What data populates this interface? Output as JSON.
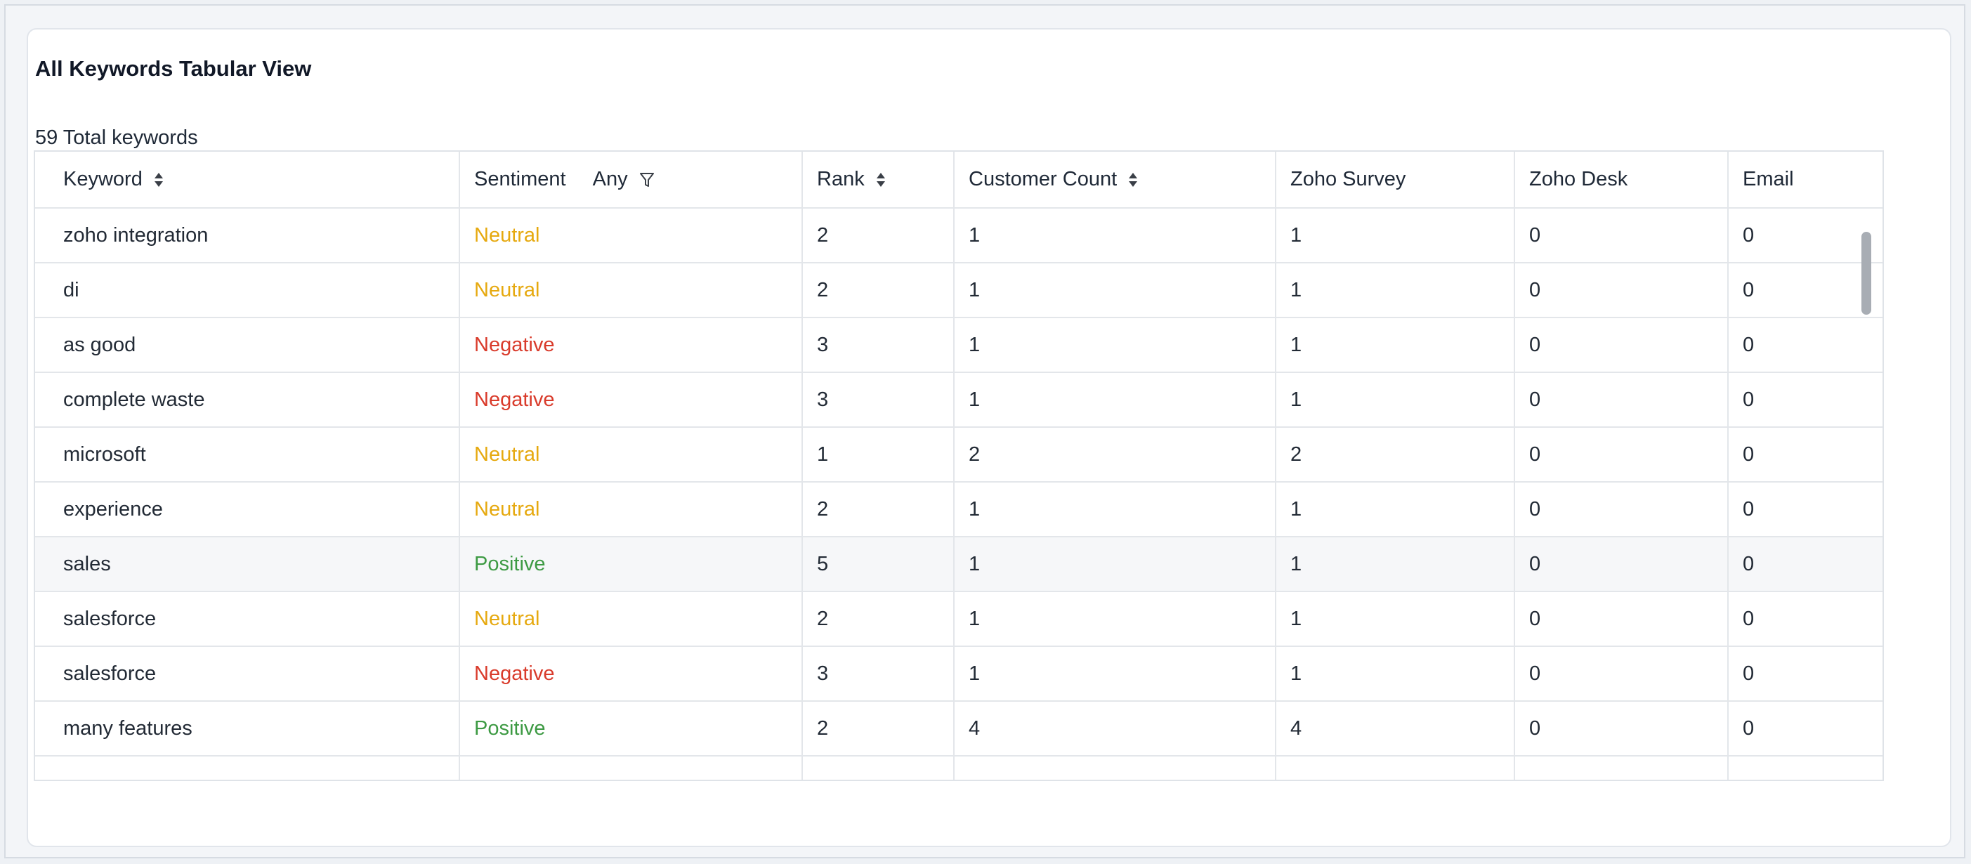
{
  "card": {
    "title": "All Keywords Tabular View",
    "total_label": "59 Total keywords"
  },
  "table": {
    "headers": {
      "keyword": "Keyword",
      "sentiment": "Sentiment",
      "sentiment_filter": "Any",
      "rank": "Rank",
      "customer_count": "Customer Count",
      "zoho_survey": "Zoho Survey",
      "zoho_desk": "Zoho Desk",
      "email": "Email"
    },
    "rows": [
      {
        "keyword": "zoho integration",
        "sentiment": "Neutral",
        "rank": "2",
        "customer_count": "1",
        "zoho_survey": "1",
        "zoho_desk": "0",
        "email": "0"
      },
      {
        "keyword": "di",
        "sentiment": "Neutral",
        "rank": "2",
        "customer_count": "1",
        "zoho_survey": "1",
        "zoho_desk": "0",
        "email": "0"
      },
      {
        "keyword": "as good",
        "sentiment": "Negative",
        "rank": "3",
        "customer_count": "1",
        "zoho_survey": "1",
        "zoho_desk": "0",
        "email": "0"
      },
      {
        "keyword": "complete waste",
        "sentiment": "Negative",
        "rank": "3",
        "customer_count": "1",
        "zoho_survey": "1",
        "zoho_desk": "0",
        "email": "0"
      },
      {
        "keyword": "microsoft",
        "sentiment": "Neutral",
        "rank": "1",
        "customer_count": "2",
        "zoho_survey": "2",
        "zoho_desk": "0",
        "email": "0"
      },
      {
        "keyword": "experience",
        "sentiment": "Neutral",
        "rank": "2",
        "customer_count": "1",
        "zoho_survey": "1",
        "zoho_desk": "0",
        "email": "0"
      },
      {
        "keyword": "sales",
        "sentiment": "Positive",
        "rank": "5",
        "customer_count": "1",
        "zoho_survey": "1",
        "zoho_desk": "0",
        "email": "0"
      },
      {
        "keyword": "salesforce",
        "sentiment": "Neutral",
        "rank": "2",
        "customer_count": "1",
        "zoho_survey": "1",
        "zoho_desk": "0",
        "email": "0"
      },
      {
        "keyword": "salesforce",
        "sentiment": "Negative",
        "rank": "3",
        "customer_count": "1",
        "zoho_survey": "1",
        "zoho_desk": "0",
        "email": "0"
      },
      {
        "keyword": "many features",
        "sentiment": "Positive",
        "rank": "2",
        "customer_count": "4",
        "zoho_survey": "4",
        "zoho_desk": "0",
        "email": "0"
      },
      {
        "keyword": "",
        "sentiment": "",
        "rank": "",
        "customer_count": "",
        "zoho_survey": "",
        "zoho_desk": "",
        "email": ""
      }
    ]
  },
  "colors": {
    "neutral": "#e6a90f",
    "negative": "#d93b2b",
    "positive": "#3d9a43"
  }
}
